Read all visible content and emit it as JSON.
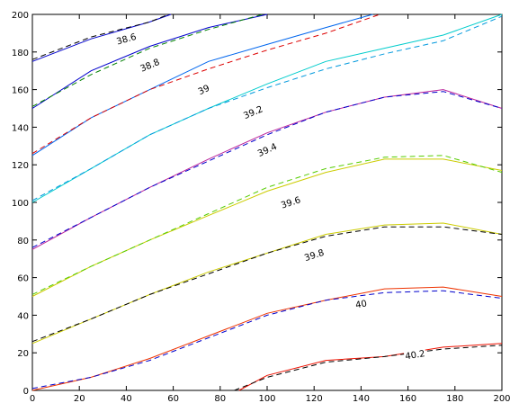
{
  "chart_data": {
    "type": "line",
    "title": "",
    "xlabel": "",
    "ylabel": "",
    "xlim": [
      0,
      200
    ],
    "ylim": [
      0,
      200
    ],
    "xticks": [
      0,
      20,
      40,
      60,
      80,
      100,
      120,
      140,
      160,
      180,
      200
    ],
    "yticks": [
      0,
      20,
      40,
      60,
      80,
      100,
      120,
      140,
      160,
      180,
      200
    ],
    "grid": false,
    "legend": "none",
    "contours": [
      {
        "level": "38.6",
        "solid_color": "#0000cc",
        "dashed_color": "#000000",
        "label_at": [
          40,
          187
        ],
        "solid": [
          [
            0,
            175
          ],
          [
            25,
            187
          ],
          [
            50,
            196
          ],
          [
            59,
            200
          ]
        ],
        "dashed": [
          [
            0,
            176
          ],
          [
            25,
            188
          ],
          [
            50,
            196
          ],
          [
            58,
            200
          ]
        ]
      },
      {
        "level": "38.8",
        "solid_color": "#0000cc",
        "dashed_color": "#008000",
        "label_at": [
          50,
          173
        ],
        "solid": [
          [
            0,
            150
          ],
          [
            25,
            170
          ],
          [
            50,
            183
          ],
          [
            75,
            193
          ],
          [
            100,
            200
          ]
        ],
        "dashed": [
          [
            0,
            151
          ],
          [
            25,
            168
          ],
          [
            50,
            182
          ],
          [
            75,
            192
          ],
          [
            98,
            200
          ]
        ]
      },
      {
        "level": "39",
        "solid_color": "#0066ee",
        "dashed_color": "#dd0000",
        "label_at": [
          73,
          160
        ],
        "solid": [
          [
            0,
            125
          ],
          [
            25,
            145
          ],
          [
            50,
            160
          ],
          [
            75,
            175
          ],
          [
            100,
            184
          ],
          [
            125,
            193
          ],
          [
            145,
            200
          ]
        ],
        "dashed": [
          [
            0,
            126
          ],
          [
            25,
            145
          ],
          [
            50,
            160
          ],
          [
            75,
            171
          ],
          [
            100,
            181
          ],
          [
            125,
            190
          ],
          [
            148,
            200
          ]
        ]
      },
      {
        "level": "39.2",
        "solid_color": "#00cccc",
        "dashed_color": "#0099dd",
        "label_at": [
          94,
          148
        ],
        "solid": [
          [
            0,
            100
          ],
          [
            25,
            118
          ],
          [
            50,
            136
          ],
          [
            75,
            150
          ],
          [
            100,
            163
          ],
          [
            125,
            175
          ],
          [
            150,
            182
          ],
          [
            175,
            189
          ],
          [
            200,
            200
          ]
        ],
        "dashed": [
          [
            0,
            101
          ],
          [
            25,
            118
          ],
          [
            50,
            136
          ],
          [
            75,
            150
          ],
          [
            100,
            161
          ],
          [
            125,
            171
          ],
          [
            150,
            179
          ],
          [
            175,
            186
          ],
          [
            200,
            199
          ]
        ]
      },
      {
        "level": "39.4",
        "solid_color": "#bb2299",
        "dashed_color": "#0000cc",
        "label_at": [
          100,
          128
        ],
        "solid": [
          [
            0,
            75
          ],
          [
            25,
            92
          ],
          [
            50,
            108
          ],
          [
            75,
            123
          ],
          [
            100,
            137
          ],
          [
            125,
            148
          ],
          [
            150,
            156
          ],
          [
            175,
            160
          ],
          [
            200,
            150
          ]
        ],
        "dashed": [
          [
            0,
            76
          ],
          [
            25,
            92
          ],
          [
            50,
            108
          ],
          [
            75,
            122
          ],
          [
            100,
            136
          ],
          [
            125,
            148
          ],
          [
            150,
            156
          ],
          [
            175,
            159
          ],
          [
            200,
            150
          ]
        ]
      },
      {
        "level": "39.6",
        "solid_color": "#cccc00",
        "dashed_color": "#55cc00",
        "label_at": [
          110,
          100
        ],
        "solid": [
          [
            0,
            50
          ],
          [
            25,
            66
          ],
          [
            50,
            80
          ],
          [
            75,
            93
          ],
          [
            100,
            106
          ],
          [
            125,
            116
          ],
          [
            150,
            123
          ],
          [
            175,
            123
          ],
          [
            200,
            117
          ]
        ],
        "dashed": [
          [
            0,
            51
          ],
          [
            25,
            66
          ],
          [
            50,
            80
          ],
          [
            75,
            94
          ],
          [
            100,
            108
          ],
          [
            125,
            118
          ],
          [
            150,
            124
          ],
          [
            175,
            125
          ],
          [
            200,
            116
          ]
        ]
      },
      {
        "level": "39.8",
        "solid_color": "#cccc00",
        "dashed_color": "#000000",
        "label_at": [
          120,
          72
        ],
        "solid": [
          [
            0,
            25
          ],
          [
            25,
            38
          ],
          [
            50,
            51
          ],
          [
            75,
            63
          ],
          [
            100,
            73
          ],
          [
            125,
            83
          ],
          [
            150,
            88
          ],
          [
            175,
            89
          ],
          [
            200,
            83
          ]
        ],
        "dashed": [
          [
            0,
            26
          ],
          [
            25,
            38
          ],
          [
            50,
            51
          ],
          [
            75,
            62
          ],
          [
            100,
            73
          ],
          [
            125,
            82
          ],
          [
            150,
            87
          ],
          [
            175,
            87
          ],
          [
            200,
            83
          ]
        ]
      },
      {
        "level": "40",
        "solid_color": "#ee3300",
        "dashed_color": "#0000cc",
        "label_at": [
          140,
          46
        ],
        "solid": [
          [
            0,
            0
          ],
          [
            25,
            7
          ],
          [
            50,
            17
          ],
          [
            75,
            29
          ],
          [
            100,
            41
          ],
          [
            125,
            48
          ],
          [
            150,
            54
          ],
          [
            175,
            55
          ],
          [
            200,
            50
          ]
        ],
        "dashed": [
          [
            0,
            1
          ],
          [
            25,
            7
          ],
          [
            50,
            16
          ],
          [
            75,
            28
          ],
          [
            100,
            40
          ],
          [
            125,
            48
          ],
          [
            150,
            52
          ],
          [
            175,
            53
          ],
          [
            200,
            49
          ]
        ]
      },
      {
        "level": "40.2",
        "solid_color": "#ee1100",
        "dashed_color": "#000000",
        "label_at": [
          163,
          19
        ],
        "solid": [
          [
            88,
            0
          ],
          [
            100,
            8
          ],
          [
            125,
            16
          ],
          [
            150,
            18
          ],
          [
            175,
            23
          ],
          [
            200,
            25
          ]
        ],
        "dashed": [
          [
            86,
            0
          ],
          [
            100,
            7
          ],
          [
            125,
            15
          ],
          [
            150,
            18
          ],
          [
            175,
            22
          ],
          [
            200,
            24
          ]
        ]
      }
    ]
  }
}
